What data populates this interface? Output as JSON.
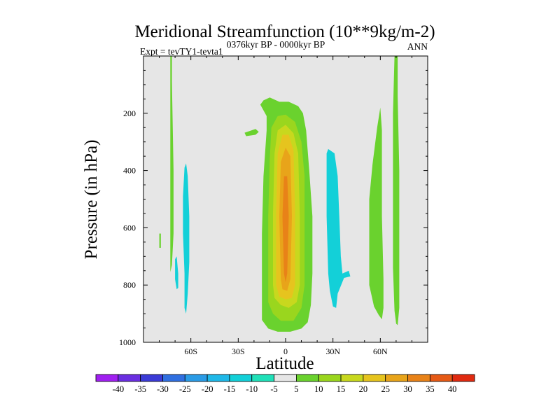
{
  "chart_data": {
    "type": "contour",
    "title": "Meridional Streamfunction (10**9kg/m-2)",
    "left_label": "Expt = tevTY1-tevta1",
    "center_label": "0376kyr BP - 0000kyr BP",
    "right_label": "ANN",
    "xlabel": "Latitude",
    "ylabel": "Pressure (in hPa)",
    "xlim": [
      -90,
      90
    ],
    "ylim": [
      1000,
      0
    ],
    "x_ticks": [
      {
        "value": -60,
        "label": "60S"
      },
      {
        "value": -30,
        "label": "30S"
      },
      {
        "value": 0,
        "label": "0"
      },
      {
        "value": 30,
        "label": "30N"
      },
      {
        "value": 60,
        "label": "60N"
      }
    ],
    "y_ticks": [
      {
        "value": 200,
        "label": "200"
      },
      {
        "value": 400,
        "label": "400"
      },
      {
        "value": 600,
        "label": "600"
      },
      {
        "value": 800,
        "label": "800"
      },
      {
        "value": 1000,
        "label": "1000"
      }
    ],
    "colorbar": {
      "labels": [
        "-40",
        "-35",
        "-30",
        "-25",
        "-20",
        "-15",
        "-10",
        "-5",
        "5",
        "10",
        "15",
        "20",
        "25",
        "30",
        "35",
        "40"
      ],
      "colors": [
        "#a020f0",
        "#6a2ee0",
        "#3b3bd6",
        "#2f6fe0",
        "#2a9be6",
        "#1fb8e8",
        "#13d0d8",
        "#20e0b8",
        "#e6e6e6",
        "#6ad22e",
        "#9ad61e",
        "#c8d81e",
        "#e6c41e",
        "#e8a41a",
        "#e88218",
        "#e65a16",
        "#e02a10"
      ]
    },
    "regions": [
      {
        "name": "tropical-cell",
        "color": "#6ad22e",
        "points": [
          [
            -15,
            620
          ],
          [
            -14,
            420
          ],
          [
            -12,
            260
          ],
          [
            -12,
            210
          ],
          [
            -16,
            170
          ],
          [
            -14,
            155
          ],
          [
            -10,
            145
          ],
          [
            -4,
            160
          ],
          [
            2,
            160
          ],
          [
            8,
            175
          ],
          [
            11,
            200
          ],
          [
            13,
            260
          ],
          [
            15,
            400
          ],
          [
            17,
            560
          ],
          [
            17,
            760
          ],
          [
            16,
            870
          ],
          [
            14,
            930
          ],
          [
            10,
            952
          ],
          [
            3,
            963
          ],
          [
            -5,
            963
          ],
          [
            -11,
            952
          ],
          [
            -15,
            922
          ],
          [
            -15,
            820
          ]
        ]
      },
      {
        "name": "tropical-cell-spur",
        "color": "#6ad22e",
        "points": [
          [
            -26,
            268
          ],
          [
            -19,
            255
          ],
          [
            -17,
            265
          ],
          [
            -19,
            275
          ],
          [
            -25,
            280
          ]
        ]
      },
      {
        "name": "tropical-cell",
        "color": "#9ad61e",
        "points": [
          [
            -11,
            780
          ],
          [
            -11,
            560
          ],
          [
            -10,
            360
          ],
          [
            -9,
            250
          ],
          [
            -5,
            210
          ],
          [
            0,
            205
          ],
          [
            6,
            230
          ],
          [
            10,
            300
          ],
          [
            12,
            420
          ],
          [
            12,
            620
          ],
          [
            12,
            800
          ],
          [
            10,
            880
          ],
          [
            5,
            925
          ],
          [
            -3,
            925
          ],
          [
            -8,
            900
          ],
          [
            -11,
            860
          ]
        ]
      },
      {
        "name": "tropical-cell",
        "color": "#c8d81e",
        "points": [
          [
            -8,
            800
          ],
          [
            -8,
            550
          ],
          [
            -7,
            340
          ],
          [
            -5,
            260
          ],
          [
            0,
            240
          ],
          [
            5,
            270
          ],
          [
            8,
            340
          ],
          [
            9,
            560
          ],
          [
            9,
            800
          ],
          [
            7,
            860
          ],
          [
            2,
            880
          ],
          [
            -3,
            870
          ],
          [
            -7,
            845
          ]
        ]
      },
      {
        "name": "tropical-cell",
        "color": "#e6c41e",
        "points": [
          [
            -6,
            800
          ],
          [
            -6,
            540
          ],
          [
            -5,
            340
          ],
          [
            -2,
            275
          ],
          [
            2,
            275
          ],
          [
            5,
            330
          ],
          [
            6,
            540
          ],
          [
            6,
            800
          ],
          [
            4,
            845
          ],
          [
            0,
            850
          ],
          [
            -4,
            840
          ]
        ]
      },
      {
        "name": "tropical-cell",
        "color": "#e8a41a",
        "points": [
          [
            -3,
            780
          ],
          [
            -4,
            560
          ],
          [
            -3,
            370
          ],
          [
            0,
            320
          ],
          [
            3,
            350
          ],
          [
            4,
            560
          ],
          [
            3,
            780
          ],
          [
            1,
            820
          ],
          [
            -2,
            815
          ]
        ]
      },
      {
        "name": "tropical-cell-core",
        "color": "#e88218",
        "points": [
          [
            -1,
            760
          ],
          [
            -2,
            560
          ],
          [
            -1,
            420
          ],
          [
            1,
            420
          ],
          [
            2,
            560
          ],
          [
            1,
            760
          ],
          [
            0,
            790
          ]
        ]
      },
      {
        "name": "nh-subtropical-anomaly",
        "color": "#13d0d8",
        "points": [
          [
            26,
            340
          ],
          [
            27,
            325
          ],
          [
            31,
            340
          ],
          [
            33,
            420
          ],
          [
            34,
            560
          ],
          [
            35,
            700
          ],
          [
            36,
            760
          ],
          [
            40,
            750
          ],
          [
            41,
            770
          ],
          [
            37,
            775
          ],
          [
            33,
            830
          ],
          [
            32,
            880
          ],
          [
            30,
            875
          ],
          [
            28,
            820
          ],
          [
            27,
            760
          ],
          [
            26,
            560
          ]
        ]
      },
      {
        "name": "sh-anomaly",
        "color": "#13d0d8",
        "points": [
          [
            -65,
            490
          ],
          [
            -64,
            390
          ],
          [
            -63,
            375
          ],
          [
            -62,
            420
          ],
          [
            -61,
            560
          ],
          [
            -61,
            720
          ],
          [
            -62,
            830
          ],
          [
            -63,
            900
          ],
          [
            -64,
            880
          ],
          [
            -64,
            760
          ],
          [
            -65,
            620
          ]
        ]
      },
      {
        "name": "sh-anomaly",
        "color": "#13d0d8",
        "points": [
          [
            -70,
            710
          ],
          [
            -69,
            700
          ],
          [
            -68,
            760
          ],
          [
            -68,
            810
          ],
          [
            -69,
            815
          ],
          [
            -70,
            780
          ]
        ]
      },
      {
        "name": "sh-high-lat-strip",
        "color": "#6ad22e",
        "points": [
          [
            -73,
            0
          ],
          [
            -72,
            0
          ],
          [
            -72,
            90
          ],
          [
            -71,
            400
          ],
          [
            -71,
            620
          ],
          [
            -72,
            730
          ],
          [
            -73,
            755
          ],
          [
            -73,
            620
          ],
          [
            -73,
            400
          ],
          [
            -73,
            100
          ]
        ]
      },
      {
        "name": "sh-small-strip",
        "color": "#6ad22e",
        "points": [
          [
            -80,
            620
          ],
          [
            -79,
            620
          ],
          [
            -79,
            670
          ],
          [
            -80,
            670
          ]
        ]
      },
      {
        "name": "nh-midlat-strip",
        "color": "#6ad22e",
        "points": [
          [
            53,
            500
          ],
          [
            55,
            380
          ],
          [
            58,
            250
          ],
          [
            60,
            180
          ],
          [
            61,
            260
          ],
          [
            61,
            560
          ],
          [
            62,
            780
          ],
          [
            62,
            880
          ],
          [
            61,
            920
          ],
          [
            59,
            905
          ],
          [
            56,
            875
          ],
          [
            53,
            800
          ]
        ]
      },
      {
        "name": "nh-high-lat-strip",
        "color": "#6ad22e",
        "points": [
          [
            69,
            0
          ],
          [
            71,
            0
          ],
          [
            71,
            140
          ],
          [
            72,
            400
          ],
          [
            72,
            700
          ],
          [
            72,
            880
          ],
          [
            71,
            940
          ],
          [
            70,
            935
          ],
          [
            69,
            890
          ],
          [
            68,
            740
          ],
          [
            68,
            500
          ],
          [
            68,
            200
          ]
        ]
      }
    ]
  }
}
